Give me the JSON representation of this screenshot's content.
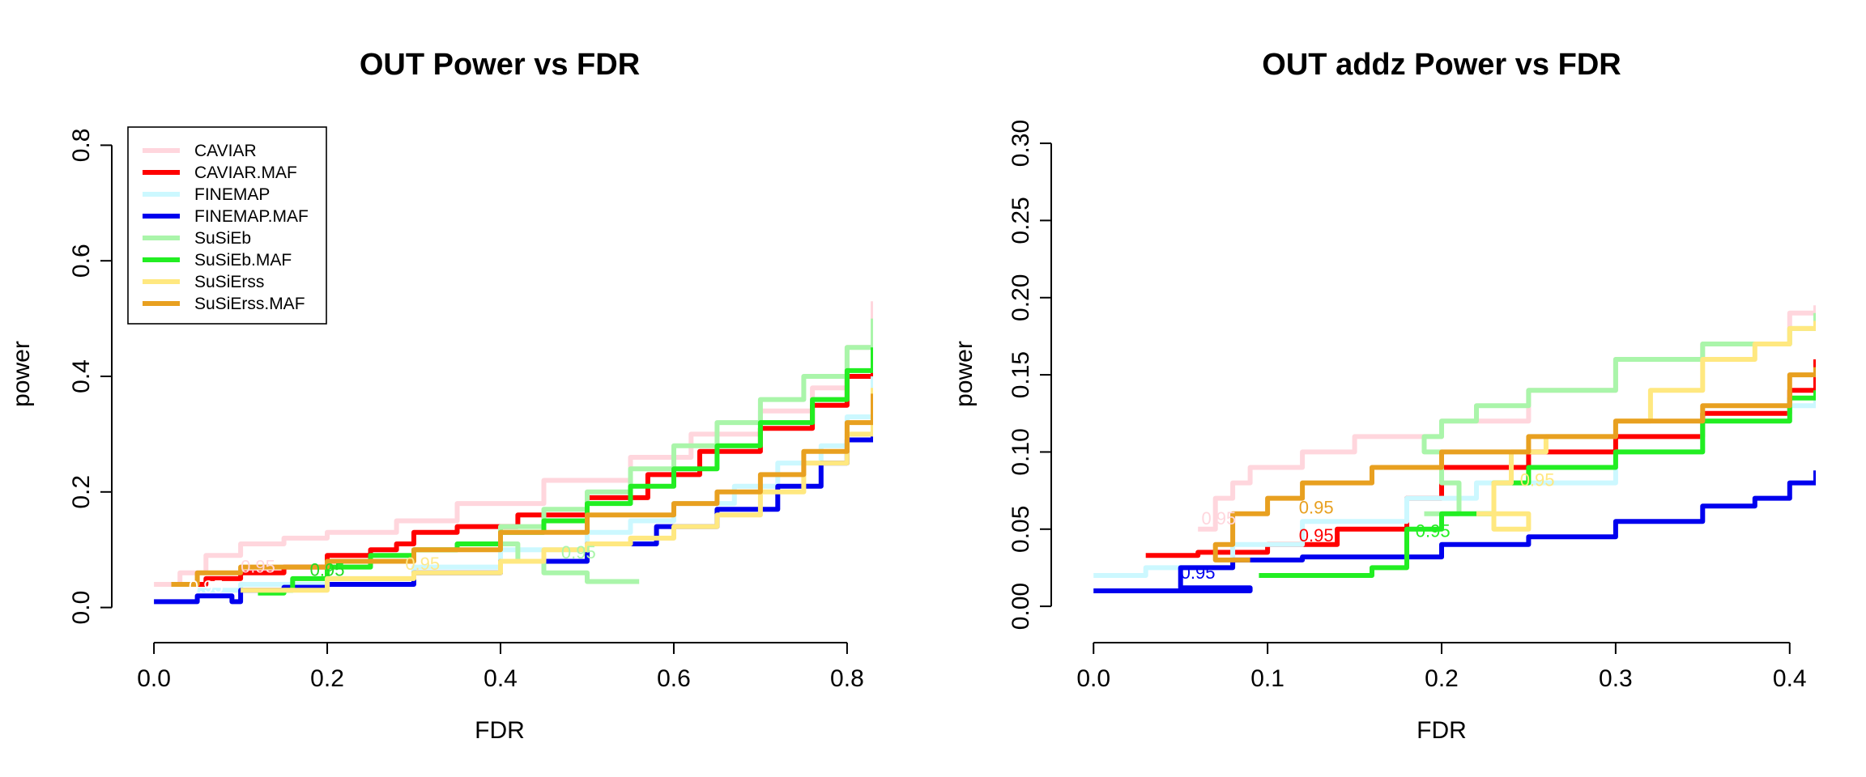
{
  "chart_data": [
    {
      "type": "line",
      "title": "OUT Power vs FDR",
      "xlabel": "FDR",
      "ylabel": "power",
      "xlim": [
        -0.03,
        0.83
      ],
      "ylim": [
        -0.03,
        0.83
      ],
      "xticks": [
        "0.0",
        "0.2",
        "0.4",
        "0.6",
        "0.8"
      ],
      "xtick_values": [
        0.0,
        0.2,
        0.4,
        0.6,
        0.8
      ],
      "yticks": [
        "0.0",
        "0.2",
        "0.4",
        "0.6",
        "0.8"
      ],
      "ytick_values": [
        0.0,
        0.2,
        0.4,
        0.6,
        0.8
      ],
      "legend_position": "top-left",
      "legend": [
        "CAVIAR",
        "CAVIAR.MAF",
        "FINEMAP",
        "FINEMAP.MAF",
        "SuSiEb",
        "SuSiEb.MAF",
        "SuSiErss",
        "SuSiErss.MAF"
      ],
      "annotations": [
        {
          "text": "0.95",
          "x": 0.1,
          "y": 0.06,
          "color": "#ffd6dd"
        },
        {
          "text": "0.95",
          "x": 0.18,
          "y": 0.055,
          "color": "#22dd22"
        },
        {
          "text": "0.95",
          "x": 0.29,
          "y": 0.065,
          "color": "#ffe88a"
        },
        {
          "text": "0.95",
          "x": 0.47,
          "y": 0.085,
          "color": "#aaf5aa"
        },
        {
          "text": "0.95",
          "x": 0.04,
          "y": 0.025,
          "color": "#ffffff"
        }
      ],
      "series": [
        {
          "name": "CAVIAR",
          "color": "#ffd6dd",
          "x": [
            0.0,
            0.03,
            0.06,
            0.1,
            0.15,
            0.2,
            0.28,
            0.35,
            0.45,
            0.55,
            0.62,
            0.7,
            0.76,
            0.8,
            0.83
          ],
          "y": [
            0.04,
            0.06,
            0.09,
            0.11,
            0.12,
            0.13,
            0.15,
            0.18,
            0.22,
            0.26,
            0.3,
            0.34,
            0.38,
            0.45,
            0.53
          ]
        },
        {
          "name": "CAVIAR.MAF",
          "color": "#ff0000",
          "x": [
            0.03,
            0.06,
            0.1,
            0.15,
            0.2,
            0.25,
            0.28,
            0.3,
            0.35,
            0.42,
            0.5,
            0.57,
            0.63,
            0.7,
            0.76,
            0.8,
            0.83
          ],
          "y": [
            0.04,
            0.05,
            0.06,
            0.07,
            0.09,
            0.1,
            0.11,
            0.13,
            0.14,
            0.16,
            0.19,
            0.23,
            0.27,
            0.31,
            0.35,
            0.4,
            0.46
          ]
        },
        {
          "name": "FINEMAP",
          "color": "#ccf8ff",
          "x": [
            0.05,
            0.1,
            0.2,
            0.3,
            0.4,
            0.5,
            0.55,
            0.6,
            0.67,
            0.72,
            0.77,
            0.8,
            0.83
          ],
          "y": [
            0.03,
            0.04,
            0.05,
            0.07,
            0.1,
            0.13,
            0.15,
            0.18,
            0.21,
            0.25,
            0.28,
            0.33,
            0.4
          ]
        },
        {
          "name": "FINEMAP.MAF",
          "color": "#0000ee",
          "x": [
            0.0,
            0.04,
            0.05,
            0.08,
            0.09,
            0.1,
            0.15,
            0.2,
            0.3,
            0.4,
            0.5,
            0.58,
            0.65,
            0.72,
            0.77,
            0.8,
            0.83
          ],
          "y": [
            0.01,
            0.01,
            0.02,
            0.02,
            0.01,
            0.03,
            0.035,
            0.04,
            0.06,
            0.08,
            0.11,
            0.14,
            0.17,
            0.21,
            0.25,
            0.29,
            0.35
          ]
        },
        {
          "name": "SuSiEb",
          "color": "#aaf5aa",
          "x": [
            0.56,
            0.5,
            0.45,
            0.42,
            0.4,
            0.45,
            0.5,
            0.55,
            0.6,
            0.65,
            0.7,
            0.75,
            0.8,
            0.83
          ],
          "y": [
            0.045,
            0.06,
            0.08,
            0.11,
            0.14,
            0.17,
            0.2,
            0.24,
            0.28,
            0.32,
            0.36,
            0.4,
            0.45,
            0.5
          ]
        },
        {
          "name": "SuSiEb.MAF",
          "color": "#22ee22",
          "x": [
            0.12,
            0.15,
            0.16,
            0.2,
            0.25,
            0.3,
            0.35,
            0.4,
            0.45,
            0.5,
            0.55,
            0.6,
            0.65,
            0.7,
            0.76,
            0.8,
            0.83
          ],
          "y": [
            0.025,
            0.03,
            0.05,
            0.07,
            0.09,
            0.1,
            0.11,
            0.13,
            0.15,
            0.18,
            0.21,
            0.24,
            0.28,
            0.32,
            0.36,
            0.41,
            0.45
          ]
        },
        {
          "name": "SuSiErss",
          "color": "#ffe880",
          "x": [
            0.1,
            0.2,
            0.3,
            0.4,
            0.45,
            0.5,
            0.55,
            0.6,
            0.65,
            0.7,
            0.75,
            0.8,
            0.83
          ],
          "y": [
            0.03,
            0.05,
            0.06,
            0.08,
            0.1,
            0.11,
            0.12,
            0.14,
            0.16,
            0.2,
            0.25,
            0.3,
            0.38
          ]
        },
        {
          "name": "SuSiErss.MAF",
          "color": "#e8a020",
          "x": [
            0.02,
            0.05,
            0.1,
            0.2,
            0.3,
            0.4,
            0.5,
            0.6,
            0.65,
            0.7,
            0.75,
            0.8,
            0.83
          ],
          "y": [
            0.04,
            0.06,
            0.07,
            0.08,
            0.1,
            0.13,
            0.16,
            0.18,
            0.2,
            0.23,
            0.27,
            0.32,
            0.37
          ]
        }
      ]
    },
    {
      "type": "line",
      "title": "OUT addz Power vs FDR",
      "xlabel": "FDR",
      "ylabel": "power",
      "xlim": [
        -0.015,
        0.415
      ],
      "ylim": [
        -0.012,
        0.31
      ],
      "xticks": [
        "0.0",
        "0.1",
        "0.2",
        "0.3",
        "0.4"
      ],
      "xtick_values": [
        0.0,
        0.1,
        0.2,
        0.3,
        0.4
      ],
      "yticks": [
        "0.00",
        "0.05",
        "0.10",
        "0.15",
        "0.20",
        "0.25",
        "0.30"
      ],
      "ytick_values": [
        0.0,
        0.05,
        0.1,
        0.15,
        0.2,
        0.25,
        0.3
      ],
      "annotations": [
        {
          "text": "0.95",
          "x": 0.05,
          "y": 0.018,
          "color": "#0000ee"
        },
        {
          "text": "0.95",
          "x": 0.118,
          "y": 0.042,
          "color": "#ff0000"
        },
        {
          "text": "0.95",
          "x": 0.118,
          "y": 0.06,
          "color": "#e8a020"
        },
        {
          "text": "0.95",
          "x": 0.185,
          "y": 0.045,
          "color": "#22ee22"
        },
        {
          "text": "0.95",
          "x": 0.245,
          "y": 0.078,
          "color": "#ffe880"
        },
        {
          "text": "0.95",
          "x": 0.062,
          "y": 0.053,
          "color": "#ffd6dd"
        }
      ],
      "series": [
        {
          "name": "CAVIAR",
          "color": "#ffd6dd",
          "x": [
            0.06,
            0.07,
            0.08,
            0.09,
            0.12,
            0.15,
            0.2,
            0.25,
            0.3,
            0.35,
            0.4,
            0.415
          ],
          "y": [
            0.05,
            0.07,
            0.08,
            0.09,
            0.1,
            0.11,
            0.12,
            0.14,
            0.16,
            0.17,
            0.19,
            0.195
          ]
        },
        {
          "name": "CAVIAR.MAF",
          "color": "#ff0000",
          "x": [
            0.03,
            0.06,
            0.1,
            0.14,
            0.18,
            0.2,
            0.25,
            0.3,
            0.35,
            0.4,
            0.415
          ],
          "y": [
            0.033,
            0.035,
            0.04,
            0.05,
            0.07,
            0.09,
            0.1,
            0.11,
            0.125,
            0.14,
            0.16
          ]
        },
        {
          "name": "FINEMAP",
          "color": "#ccf8ff",
          "x": [
            0.0,
            0.03,
            0.08,
            0.12,
            0.18,
            0.22,
            0.3,
            0.35,
            0.4,
            0.415
          ],
          "y": [
            0.02,
            0.025,
            0.04,
            0.055,
            0.07,
            0.08,
            0.1,
            0.12,
            0.13,
            0.135
          ]
        },
        {
          "name": "FINEMAP.MAF",
          "color": "#0000ee",
          "x": [
            0.0,
            0.04,
            0.06,
            0.09,
            0.05,
            0.08,
            0.12,
            0.2,
            0.25,
            0.3,
            0.35,
            0.38,
            0.4,
            0.415
          ],
          "y": [
            0.01,
            0.01,
            0.01,
            0.012,
            0.025,
            0.03,
            0.032,
            0.04,
            0.045,
            0.055,
            0.065,
            0.07,
            0.08,
            0.088
          ]
        },
        {
          "name": "SuSiEb",
          "color": "#aaf5aa",
          "x": [
            0.19,
            0.21,
            0.2,
            0.19,
            0.2,
            0.22,
            0.25,
            0.3,
            0.35,
            0.4,
            0.415
          ],
          "y": [
            0.06,
            0.08,
            0.1,
            0.11,
            0.12,
            0.13,
            0.14,
            0.16,
            0.17,
            0.18,
            0.19
          ]
        },
        {
          "name": "SuSiEb.MAF",
          "color": "#22ee22",
          "x": [
            0.095,
            0.16,
            0.18,
            0.2,
            0.23,
            0.25,
            0.3,
            0.35,
            0.4,
            0.415
          ],
          "y": [
            0.02,
            0.025,
            0.05,
            0.06,
            0.08,
            0.09,
            0.1,
            0.12,
            0.135,
            0.14
          ]
        },
        {
          "name": "SuSiErss",
          "color": "#ffe880",
          "x": [
            0.22,
            0.25,
            0.23,
            0.24,
            0.26,
            0.3,
            0.32,
            0.35,
            0.38,
            0.4,
            0.415
          ],
          "y": [
            0.06,
            0.05,
            0.08,
            0.1,
            0.11,
            0.12,
            0.14,
            0.16,
            0.17,
            0.18,
            0.185
          ]
        },
        {
          "name": "SuSiErss.MAF",
          "color": "#e8a020",
          "x": [
            0.09,
            0.07,
            0.08,
            0.1,
            0.12,
            0.16,
            0.2,
            0.25,
            0.3,
            0.35,
            0.4,
            0.415
          ],
          "y": [
            0.03,
            0.04,
            0.06,
            0.07,
            0.08,
            0.09,
            0.1,
            0.11,
            0.12,
            0.13,
            0.15,
            0.155
          ]
        }
      ]
    }
  ]
}
